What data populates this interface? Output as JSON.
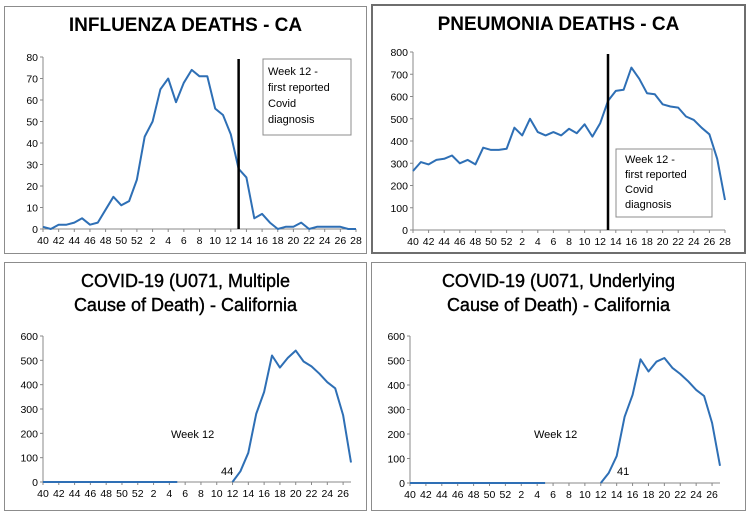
{
  "chart_data": [
    {
      "type": "line",
      "title": "INFLUENZA DEATHS - CA",
      "color": "#2e6fb5",
      "xticks": [
        "40",
        "42",
        "44",
        "46",
        "48",
        "50",
        "52",
        "2",
        "4",
        "6",
        "8",
        "10",
        "12",
        "14",
        "16",
        "18",
        "20",
        "22",
        "24",
        "26",
        "28"
      ],
      "ylim": [
        0,
        80
      ],
      "yticks": [
        0,
        10,
        20,
        30,
        40,
        50,
        60,
        70,
        80
      ],
      "values": [
        1,
        0,
        2,
        2,
        3,
        5,
        2,
        3,
        9,
        15,
        11,
        13,
        23,
        43,
        50,
        65,
        70,
        59,
        68,
        74,
        71,
        71,
        56,
        53,
        44,
        28,
        24,
        5,
        7,
        3,
        0,
        1,
        1,
        3,
        0,
        1,
        1,
        1,
        1,
        0,
        0
      ],
      "vline_at_index": 25,
      "annotation": [
        "Week 12 -",
        "first reported",
        "Covid",
        "diagnosis"
      ]
    },
    {
      "type": "line",
      "title": "PNEUMONIA DEATHS - CA",
      "color": "#2e6fb5",
      "xticks": [
        "40",
        "42",
        "44",
        "46",
        "48",
        "50",
        "52",
        "2",
        "4",
        "6",
        "8",
        "10",
        "12",
        "14",
        "16",
        "18",
        "20",
        "22",
        "24",
        "26",
        "28"
      ],
      "ylim": [
        0,
        800
      ],
      "yticks": [
        0,
        100,
        200,
        300,
        400,
        500,
        600,
        700,
        800
      ],
      "values": [
        265,
        305,
        295,
        315,
        320,
        335,
        300,
        315,
        295,
        370,
        360,
        360,
        365,
        460,
        425,
        500,
        440,
        425,
        440,
        425,
        455,
        435,
        475,
        420,
        480,
        580,
        625,
        630,
        730,
        680,
        615,
        610,
        565,
        555,
        550,
        510,
        495,
        460,
        430,
        320,
        135
      ],
      "vline_at_index": 25,
      "annotation": [
        "Week 12 -",
        "first reported",
        "Covid",
        "diagnosis"
      ]
    },
    {
      "type": "line",
      "title": "COVID-19 (U071, Multiple\nCause of Death) - California",
      "color": "#2e6fb5",
      "xticks": [
        "40",
        "42",
        "44",
        "46",
        "48",
        "50",
        "52",
        "2",
        "4",
        "6",
        "8",
        "10",
        "12",
        "14",
        "16",
        "18",
        "20",
        "22",
        "24",
        "26"
      ],
      "ylim": [
        0,
        600
      ],
      "yticks": [
        0,
        100,
        200,
        300,
        400,
        500,
        600
      ],
      "values": [
        0,
        0,
        0,
        0,
        0,
        0,
        0,
        0,
        0,
        0,
        0,
        0,
        0,
        0,
        0,
        0,
        0,
        0,
        0,
        0,
        0,
        0,
        0,
        0,
        0,
        44,
        120,
        280,
        370,
        520,
        470,
        510,
        540,
        495,
        475,
        445,
        410,
        385,
        275,
        80
      ],
      "gap_after_index": 17,
      "annotation": [
        "Week 12",
        "44"
      ]
    },
    {
      "type": "line",
      "title": "COVID-19 (U071, Underlying\nCause of Death) - California",
      "color": "#2e6fb5",
      "xticks": [
        "40",
        "42",
        "44",
        "46",
        "48",
        "50",
        "52",
        "2",
        "4",
        "6",
        "8",
        "10",
        "12",
        "14",
        "16",
        "18",
        "20",
        "22",
        "24",
        "26"
      ],
      "ylim": [
        0,
        600
      ],
      "yticks": [
        0,
        100,
        200,
        300,
        400,
        500,
        600
      ],
      "values": [
        0,
        0,
        0,
        0,
        0,
        0,
        0,
        0,
        0,
        0,
        0,
        0,
        0,
        0,
        0,
        0,
        0,
        0,
        0,
        0,
        0,
        0,
        0,
        0,
        0,
        41,
        110,
        270,
        360,
        505,
        455,
        495,
        510,
        470,
        445,
        415,
        380,
        355,
        245,
        70
      ],
      "gap_after_index": 17,
      "annotation": [
        "Week 12",
        "41"
      ]
    }
  ]
}
